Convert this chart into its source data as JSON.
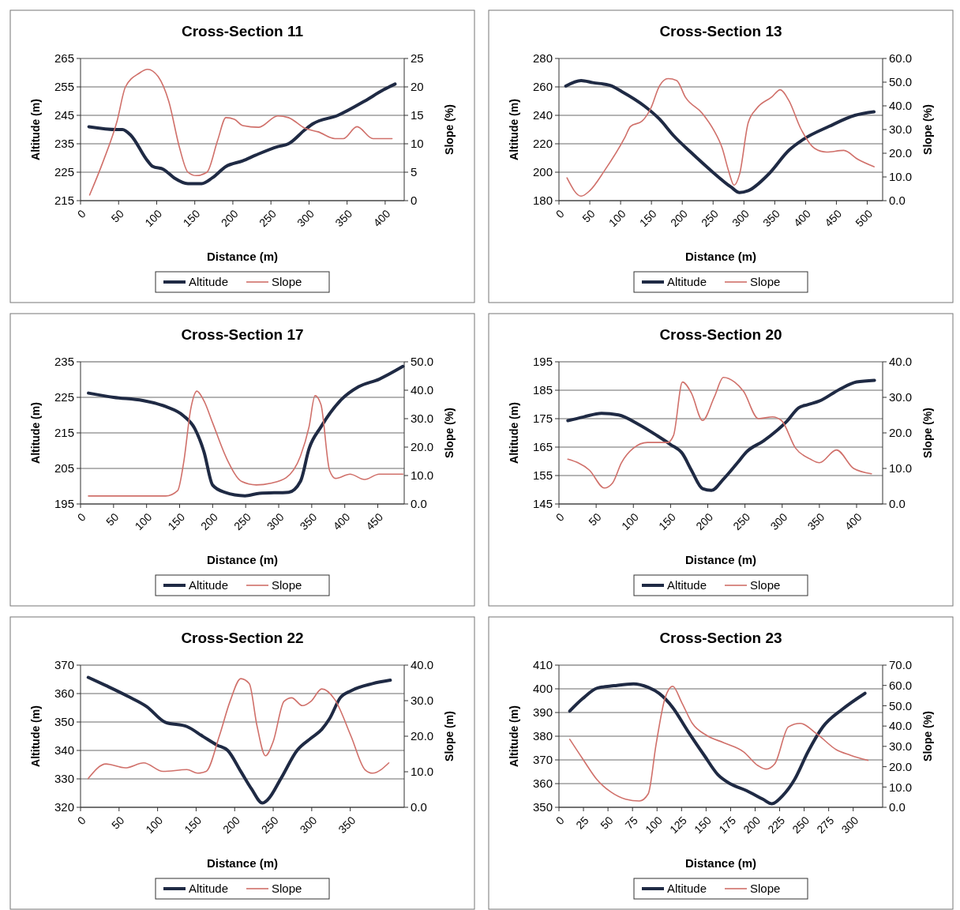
{
  "chart_data": [
    {
      "type": "line",
      "title": "Cross-Section 11",
      "xlabel": "Distance (m)",
      "ylabel": "Altitude (m)",
      "y2label": "Slope (%)",
      "grid": "y",
      "legend": "bottom",
      "xlim": [
        0,
        425
      ],
      "xticks": [
        0,
        50,
        100,
        150,
        200,
        250,
        300,
        350,
        400
      ],
      "ylim": [
        215,
        265
      ],
      "yticks": [
        215,
        225,
        235,
        245,
        255,
        265
      ],
      "y2lim": [
        0,
        25
      ],
      "y2ticks": [
        0,
        5,
        10,
        15,
        20,
        25
      ],
      "series": [
        {
          "name": "Altitude",
          "color": "#1f2a44",
          "x": [
            11,
            48,
            55,
            66,
            88,
            95,
            109,
            123,
            141,
            159,
            173,
            191,
            213,
            230,
            259,
            273,
            295,
            305,
            338,
            373,
            398,
            413
          ],
          "values": [
            241,
            240,
            240,
            238,
            229,
            227,
            226,
            223,
            221,
            221,
            223,
            227,
            229,
            231,
            234,
            235,
            240,
            242,
            245,
            250,
            254,
            256
          ]
        },
        {
          "name": "Slope",
          "color": "#d0706a",
          "axis": "y2",
          "x": [
            12,
            30,
            48,
            59,
            77,
            88,
            102,
            116,
            130,
            141,
            152,
            166,
            180,
            191,
            202,
            213,
            234,
            259,
            273,
            295,
            312,
            334,
            345,
            363,
            384,
            409
          ],
          "values": [
            1,
            7,
            14,
            20,
            22.4,
            23.1,
            21.8,
            17.4,
            9.3,
            5,
            4.4,
            5,
            10.6,
            14.6,
            14.3,
            13.2,
            12.9,
            14.9,
            14.6,
            12.7,
            12.1,
            10.9,
            10.9,
            13,
            10.9,
            10.9
          ]
        }
      ]
    },
    {
      "type": "line",
      "title": "Cross-Section 13",
      "xlabel": "Distance (m)",
      "ylabel": "Altitude (m)",
      "y2label": "Slope (%)",
      "grid": "y",
      "legend": "bottom",
      "xlim": [
        0,
        525
      ],
      "xticks": [
        0,
        50,
        100,
        150,
        200,
        250,
        300,
        350,
        400,
        450,
        500
      ],
      "ylim": [
        180,
        280
      ],
      "yticks": [
        180,
        200,
        220,
        240,
        260,
        280
      ],
      "y2lim": [
        0,
        60
      ],
      "y2ticks": [
        {
          "value": 0,
          "label": "0.0"
        },
        {
          "value": 10,
          "label": "10.0"
        },
        {
          "value": 20,
          "label": "20.0"
        },
        {
          "value": 30,
          "label": "30.0"
        },
        {
          "value": 40,
          "label": "40.0"
        },
        {
          "value": 50,
          "label": "50.0"
        },
        {
          "value": 60,
          "label": "60.0"
        }
      ],
      "series": [
        {
          "name": "Altitude",
          "color": "#1f2a44",
          "x": [
            11,
            36,
            55,
            83,
            102,
            139,
            163,
            186,
            214,
            247,
            279,
            293,
            307,
            340,
            373,
            396,
            438,
            480,
            511
          ],
          "values": [
            260.6,
            264.5,
            263,
            261,
            256.7,
            246.4,
            237.4,
            225.7,
            214,
            201,
            189.6,
            185.7,
            187,
            198.6,
            215.4,
            223,
            232.2,
            240,
            242.5
          ]
        },
        {
          "name": "Slope",
          "color": "#d0706a",
          "axis": "y2",
          "x": [
            13,
            36,
            50,
            74,
            107,
            116,
            135,
            149,
            163,
            177,
            191,
            205,
            233,
            251,
            265,
            275,
            284,
            293,
            307,
            321,
            345,
            359,
            373,
            392,
            415,
            434,
            462,
            485,
            511
          ],
          "values": [
            9.6,
            1.9,
            4.2,
            12.7,
            26.7,
            31.3,
            33.6,
            39,
            48.4,
            51.5,
            50.7,
            43.7,
            36.7,
            29.8,
            22,
            12.7,
            6.5,
            11.2,
            32.9,
            39,
            43.7,
            46.8,
            42.2,
            30.5,
            22,
            20.5,
            21.2,
            17.4,
            14.3
          ]
        }
      ]
    },
    {
      "type": "line",
      "title": "Cross-Section 17",
      "xlabel": "Distance (m)",
      "ylabel": "Altitude (m)",
      "y2label": "Slope (%)",
      "grid": "y",
      "legend": "bottom",
      "xlim": [
        0,
        490
      ],
      "xticks": [
        0,
        50,
        100,
        150,
        200,
        250,
        300,
        350,
        400,
        450
      ],
      "ylim": [
        195,
        235
      ],
      "yticks": [
        195,
        205,
        215,
        225,
        235
      ],
      "y2lim": [
        0,
        50
      ],
      "y2ticks": [
        {
          "value": 0,
          "label": "0.0"
        },
        {
          "value": 10,
          "label": "10.0"
        },
        {
          "value": 20,
          "label": "20.0"
        },
        {
          "value": 30,
          "label": "30.0"
        },
        {
          "value": 40,
          "label": "40.0"
        },
        {
          "value": 50,
          "label": "50.0"
        }
      ],
      "series": [
        {
          "name": "Altitude",
          "color": "#1f2a44",
          "x": [
            12,
            50,
            94,
            129,
            156,
            173,
            187,
            200,
            218,
            249,
            271,
            315,
            333,
            346,
            364,
            395,
            421,
            452,
            488
          ],
          "values": [
            226.2,
            225,
            224.1,
            222.4,
            219.8,
            216.2,
            209.6,
            200.3,
            198.3,
            197.3,
            198,
            198.3,
            201.4,
            210.6,
            216.7,
            224.4,
            228,
            230.1,
            233.7
          ]
        },
        {
          "name": "Slope",
          "color": "#d0706a",
          "axis": "y2",
          "x": [
            12,
            129,
            147,
            156,
            167,
            176,
            187,
            200,
            222,
            244,
            266,
            288,
            311,
            333,
            346,
            355,
            364,
            377,
            386,
            408,
            430,
            452,
            488
          ],
          "values": [
            2.8,
            2.8,
            4.7,
            14.4,
            33.6,
            39.7,
            36.2,
            28.5,
            15.6,
            7.9,
            6.7,
            7.3,
            9.2,
            16.9,
            27.2,
            38.1,
            34.9,
            11.8,
            9,
            10.5,
            8.6,
            10.5,
            10.5
          ]
        }
      ]
    },
    {
      "type": "line",
      "title": "Cross-Section 20",
      "xlabel": "Distance (m)",
      "ylabel": "Altitude (m)",
      "y2label": "Slope (%)",
      "grid": "y",
      "legend": "bottom",
      "xlim": [
        0,
        435
      ],
      "xticks": [
        0,
        50,
        100,
        150,
        200,
        250,
        300,
        350,
        400
      ],
      "ylim": [
        145,
        195
      ],
      "yticks": [
        145,
        155,
        165,
        175,
        185,
        195
      ],
      "y2lim": [
        0,
        40
      ],
      "y2ticks": [
        {
          "value": 0,
          "label": "0.0"
        },
        {
          "value": 10,
          "label": "10.0"
        },
        {
          "value": 20,
          "label": "20.0"
        },
        {
          "value": 30,
          "label": "30.0"
        },
        {
          "value": 40,
          "label": "40.0"
        }
      ],
      "series": [
        {
          "name": "Altitude",
          "color": "#1f2a44",
          "x": [
            12,
            33,
            57,
            80,
            107,
            131,
            150,
            166,
            178,
            193,
            205,
            221,
            240,
            252,
            275,
            307,
            322,
            334,
            350,
            377,
            400,
            424
          ],
          "values": [
            174.3,
            175.6,
            176.9,
            176.3,
            173,
            169.2,
            165.9,
            162.7,
            156.9,
            150.4,
            149.8,
            153.7,
            159.5,
            163.3,
            167.2,
            174.3,
            178.8,
            179.9,
            181.2,
            185.3,
            187.9,
            188.5
          ]
        },
        {
          "name": "Slope",
          "color": "#d0706a",
          "axis": "y2",
          "x": [
            12,
            41,
            61,
            72,
            84,
            100,
            119,
            146,
            154,
            166,
            178,
            193,
            209,
            221,
            236,
            248,
            268,
            287,
            299,
            318,
            338,
            350,
            373,
            396,
            420
          ],
          "values": [
            12.6,
            9.5,
            4.5,
            5.9,
            11.6,
            15.7,
            17.3,
            17.3,
            19.3,
            34.3,
            31.2,
            23.5,
            30.2,
            35.6,
            34.3,
            31.7,
            24,
            24.5,
            23.5,
            15.7,
            12.6,
            11.6,
            15.2,
            10,
            8.5
          ]
        }
      ]
    },
    {
      "type": "line",
      "title": "Cross-Section 22",
      "xlabel": "Distance (m)",
      "ylabel": "Altitude (m)",
      "y2label": "Slope (m)",
      "grid": "y",
      "legend": "bottom",
      "xlim": [
        0,
        420
      ],
      "xticks": [
        0,
        50,
        100,
        150,
        200,
        250,
        300,
        350
      ],
      "ylim": [
        320,
        370
      ],
      "yticks": [
        320,
        330,
        340,
        350,
        360,
        370
      ],
      "y2lim": [
        0,
        40
      ],
      "y2ticks": [
        {
          "value": 0,
          "label": "0.0"
        },
        {
          "value": 10,
          "label": "10.0"
        },
        {
          "value": 20,
          "label": "20.0"
        },
        {
          "value": 30,
          "label": "30.0"
        },
        {
          "value": 40,
          "label": "40.0"
        }
      ],
      "series": [
        {
          "name": "Altitude",
          "color": "#1f2a44",
          "x": [
            10,
            33,
            61,
            86,
            110,
            138,
            159,
            177,
            191,
            208,
            222,
            236,
            243,
            260,
            281,
            299,
            313,
            323,
            337,
            351,
            379,
            402
          ],
          "values": [
            365.7,
            362.8,
            359.1,
            355.4,
            349.9,
            348.4,
            344.9,
            341.9,
            340,
            332.6,
            326.4,
            321.5,
            322.7,
            330.1,
            340,
            344.3,
            347.4,
            351.1,
            358.5,
            361,
            363.5,
            364.7
          ]
        },
        {
          "name": "Slope",
          "color": "#d0706a",
          "axis": "y2",
          "x": [
            10,
            33,
            58,
            82,
            107,
            138,
            152,
            163,
            180,
            194,
            208,
            219,
            229,
            240,
            250,
            264,
            274,
            288,
            299,
            313,
            330,
            351,
            369,
            379,
            400
          ],
          "values": [
            8.1,
            12.2,
            11.1,
            12.5,
            10.1,
            10.6,
            9.6,
            10.1,
            20,
            29.8,
            36.2,
            34.8,
            22.9,
            14.5,
            18.5,
            29.8,
            30.8,
            28.6,
            29.8,
            33.3,
            30.3,
            20,
            10.6,
            9.6,
            12.5
          ]
        }
      ]
    },
    {
      "type": "line",
      "title": "Cross-Section 23",
      "xlabel": "Distance (m)",
      "ylabel": "Altitude (m)",
      "y2label": "Slope (%)",
      "grid": "y",
      "legend": "bottom",
      "xlim": [
        0,
        330
      ],
      "xticks": [
        0,
        25,
        50,
        75,
        100,
        125,
        150,
        175,
        200,
        225,
        250,
        275,
        300
      ],
      "ylim": [
        350,
        410
      ],
      "yticks": [
        350,
        360,
        370,
        380,
        390,
        400,
        410
      ],
      "y2lim": [
        0,
        70
      ],
      "y2ticks": [
        {
          "value": 0,
          "label": "0.0"
        },
        {
          "value": 10,
          "label": "10.0"
        },
        {
          "value": 20,
          "label": "20.0"
        },
        {
          "value": 30,
          "label": "30.0"
        },
        {
          "value": 40,
          "label": "40.0"
        },
        {
          "value": 50,
          "label": "50.0"
        },
        {
          "value": 60,
          "label": "60.0"
        },
        {
          "value": 70,
          "label": "70.0"
        }
      ],
      "series": [
        {
          "name": "Altitude",
          "color": "#1f2a44",
          "x": [
            11,
            24,
            39,
            56,
            76,
            91,
            102,
            116,
            131,
            148,
            162,
            174,
            191,
            208,
            217,
            228,
            240,
            254,
            269,
            289,
            312
          ],
          "values": [
            390.6,
            395.8,
            400.3,
            401.3,
            402.1,
            400.6,
            398.1,
            392.1,
            382.4,
            372,
            363.8,
            360.1,
            357.1,
            353.4,
            351.5,
            354.9,
            361.6,
            373.5,
            383.9,
            391.4,
            398.1
          ]
        },
        {
          "name": "Slope",
          "color": "#d0706a",
          "axis": "y2",
          "x": [
            11,
            24,
            39,
            53,
            68,
            82,
            91,
            99,
            108,
            116,
            125,
            136,
            151,
            168,
            188,
            203,
            211,
            220,
            234,
            246,
            263,
            283,
            297,
            315
          ],
          "values": [
            33.5,
            24,
            13.5,
            7.5,
            4,
            3.1,
            6.6,
            30.9,
            53.5,
            59.6,
            51.8,
            41.3,
            35.3,
            31.8,
            27.4,
            20.5,
            18.8,
            21.4,
            39.6,
            41.3,
            36.1,
            28.3,
            25.7,
            23.1
          ]
        }
      ]
    }
  ]
}
